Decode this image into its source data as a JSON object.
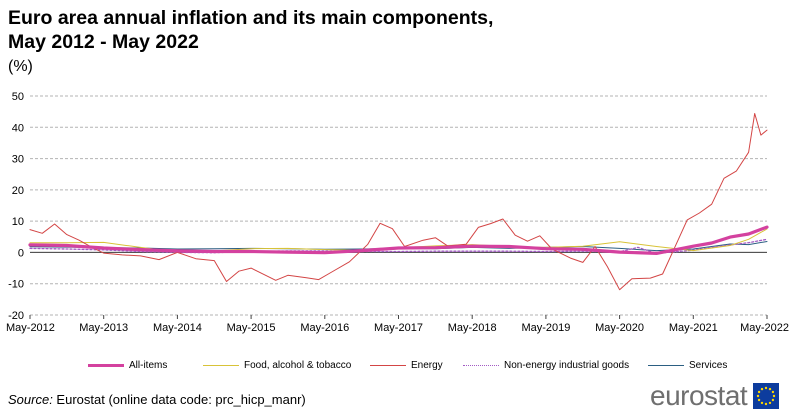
{
  "title_line1": "Euro area annual inflation and its main components,",
  "title_line2": "May 2012 - May 2022",
  "unit": "(%)",
  "source_label": "Source:",
  "source_text": " Eurostat (online data code: prc_hicp_manr)",
  "brand": "eurostat",
  "colors": {
    "grid": "#b3b3b3",
    "axis": "#444444",
    "all_items": "#d4419f",
    "food": "#d8c338",
    "energy": "#d34545",
    "non_energy": "#a35bc4",
    "services": "#2b5f82",
    "flag_blue": "#0d3c9e",
    "flag_star": "#ffd700"
  },
  "chart_data": {
    "type": "line",
    "title": "Euro area annual inflation and its main components, May 2012 - May 2022",
    "ylabel": "(%)",
    "ylim": [
      -20,
      50
    ],
    "yticks": [
      -20,
      -10,
      0,
      10,
      20,
      30,
      40,
      50
    ],
    "grid": true,
    "legend_position": "bottom",
    "x_tick_labels": [
      "May-2012",
      "May-2013",
      "May-2014",
      "May-2015",
      "May-2016",
      "May-2017",
      "May-2018",
      "May-2019",
      "May-2020",
      "May-2021",
      "May-2022"
    ],
    "series": [
      {
        "name": "All-items",
        "color_key": "all_items",
        "width": 3.2,
        "dash": "",
        "points": [
          [
            "May-2012",
            2.4
          ],
          [
            "Nov-2012",
            2.2
          ],
          [
            "May-2013",
            1.4
          ],
          [
            "Nov-2013",
            0.9
          ],
          [
            "May-2014",
            0.5
          ],
          [
            "Nov-2014",
            0.3
          ],
          [
            "May-2015",
            0.3
          ],
          [
            "Nov-2015",
            0.1
          ],
          [
            "May-2016",
            -0.1
          ],
          [
            "Nov-2016",
            0.6
          ],
          [
            "May-2017",
            1.4
          ],
          [
            "Nov-2017",
            1.5
          ],
          [
            "May-2018",
            2.0
          ],
          [
            "Nov-2018",
            1.9
          ],
          [
            "May-2019",
            1.2
          ],
          [
            "Nov-2019",
            1.0
          ],
          [
            "May-2020",
            0.1
          ],
          [
            "Nov-2020",
            -0.3
          ],
          [
            "May-2021",
            2.0
          ],
          [
            "Aug-2021",
            3.0
          ],
          [
            "Nov-2021",
            4.9
          ],
          [
            "Feb-2022",
            5.9
          ],
          [
            "May-2022",
            8.1
          ]
        ]
      },
      {
        "name": "Food, alcohol & tobacco",
        "color_key": "food",
        "width": 1,
        "dash": "",
        "points": [
          [
            "May-2012",
            3.1
          ],
          [
            "Nov-2012",
            3.1
          ],
          [
            "May-2013",
            3.2
          ],
          [
            "Nov-2013",
            1.6
          ],
          [
            "May-2014",
            0.1
          ],
          [
            "Nov-2014",
            0.5
          ],
          [
            "May-2015",
            1.2
          ],
          [
            "Nov-2015",
            1.3
          ],
          [
            "May-2016",
            0.9
          ],
          [
            "Nov-2016",
            0.7
          ],
          [
            "May-2017",
            1.5
          ],
          [
            "Nov-2017",
            2.1
          ],
          [
            "May-2018",
            2.5
          ],
          [
            "Nov-2018",
            1.9
          ],
          [
            "May-2019",
            1.6
          ],
          [
            "Nov-2019",
            2.0
          ],
          [
            "May-2020",
            3.4
          ],
          [
            "Nov-2020",
            1.9
          ],
          [
            "May-2021",
            0.6
          ],
          [
            "Nov-2021",
            2.2
          ],
          [
            "Feb-2022",
            4.2
          ],
          [
            "May-2022",
            7.5
          ]
        ]
      },
      {
        "name": "Energy",
        "color_key": "energy",
        "width": 1,
        "dash": "",
        "points": [
          [
            "May-2012",
            7.3
          ],
          [
            "Jul-2012",
            6.1
          ],
          [
            "Sep-2012",
            9.1
          ],
          [
            "Nov-2012",
            5.7
          ],
          [
            "Jan-2013",
            3.9
          ],
          [
            "Mar-2013",
            1.7
          ],
          [
            "May-2013",
            -0.2
          ],
          [
            "Aug-2013",
            -0.8
          ],
          [
            "Nov-2013",
            -1.1
          ],
          [
            "Feb-2014",
            -2.3
          ],
          [
            "May-2014",
            0.0
          ],
          [
            "Aug-2014",
            -2.0
          ],
          [
            "Nov-2014",
            -2.6
          ],
          [
            "Jan-2015",
            -9.3
          ],
          [
            "Mar-2015",
            -6.0
          ],
          [
            "May-2015",
            -5.0
          ],
          [
            "Sep-2015",
            -8.9
          ],
          [
            "Nov-2015",
            -7.3
          ],
          [
            "Feb-2016",
            -8.1
          ],
          [
            "Apr-2016",
            -8.7
          ],
          [
            "Jun-2016",
            -6.4
          ],
          [
            "Sep-2016",
            -3.0
          ],
          [
            "Dec-2016",
            2.6
          ],
          [
            "Feb-2017",
            9.3
          ],
          [
            "Apr-2017",
            7.6
          ],
          [
            "Jun-2017",
            1.9
          ],
          [
            "Sep-2017",
            3.9
          ],
          [
            "Nov-2017",
            4.7
          ],
          [
            "Jan-2018",
            2.1
          ],
          [
            "Apr-2018",
            2.6
          ],
          [
            "Jun-2018",
            8.0
          ],
          [
            "Aug-2018",
            9.2
          ],
          [
            "Oct-2018",
            10.7
          ],
          [
            "Dec-2018",
            5.5
          ],
          [
            "Feb-2019",
            3.6
          ],
          [
            "Apr-2019",
            5.3
          ],
          [
            "Jun-2019",
            1.1
          ],
          [
            "Sep-2019",
            -1.8
          ],
          [
            "Nov-2019",
            -3.2
          ],
          [
            "Jan-2020",
            1.9
          ],
          [
            "Mar-2020",
            -4.5
          ],
          [
            "May-2020",
            -11.9
          ],
          [
            "Jul-2020",
            -8.4
          ],
          [
            "Oct-2020",
            -8.2
          ],
          [
            "Dec-2020",
            -6.9
          ],
          [
            "Feb-2021",
            1.7
          ],
          [
            "Apr-2021",
            10.4
          ],
          [
            "Jun-2021",
            12.6
          ],
          [
            "Aug-2021",
            15.4
          ],
          [
            "Oct-2021",
            23.7
          ],
          [
            "Dec-2021",
            26.0
          ],
          [
            "Feb-2022",
            32.0
          ],
          [
            "Mar-2022",
            44.4
          ],
          [
            "Apr-2022",
            37.5
          ],
          [
            "May-2022",
            39.1
          ]
        ]
      },
      {
        "name": "Non-energy industrial goods",
        "color_key": "non_energy",
        "width": 1.3,
        "dash": "2,2",
        "points": [
          [
            "May-2012",
            1.3
          ],
          [
            "Nov-2012",
            1.1
          ],
          [
            "May-2013",
            0.8
          ],
          [
            "Nov-2013",
            0.3
          ],
          [
            "May-2014",
            0.0
          ],
          [
            "Nov-2014",
            -0.1
          ],
          [
            "May-2015",
            0.3
          ],
          [
            "Nov-2015",
            0.5
          ],
          [
            "May-2016",
            0.5
          ],
          [
            "Nov-2016",
            0.3
          ],
          [
            "May-2017",
            0.3
          ],
          [
            "Nov-2017",
            0.4
          ],
          [
            "May-2018",
            0.4
          ],
          [
            "Nov-2018",
            0.4
          ],
          [
            "May-2019",
            0.3
          ],
          [
            "Nov-2019",
            0.4
          ],
          [
            "May-2020",
            0.2
          ],
          [
            "Aug-2020",
            1.6
          ],
          [
            "Nov-2020",
            -0.3
          ],
          [
            "May-2021",
            0.7
          ],
          [
            "Nov-2021",
            2.4
          ],
          [
            "Feb-2022",
            3.1
          ],
          [
            "May-2022",
            4.2
          ]
        ]
      },
      {
        "name": "Services",
        "color_key": "services",
        "width": 1,
        "dash": "",
        "points": [
          [
            "May-2012",
            1.8
          ],
          [
            "Nov-2012",
            1.7
          ],
          [
            "May-2013",
            1.5
          ],
          [
            "Nov-2013",
            1.4
          ],
          [
            "May-2014",
            1.1
          ],
          [
            "Nov-2014",
            1.2
          ],
          [
            "May-2015",
            1.3
          ],
          [
            "Nov-2015",
            1.2
          ],
          [
            "May-2016",
            1.0
          ],
          [
            "Nov-2016",
            1.1
          ],
          [
            "May-2017",
            1.3
          ],
          [
            "Nov-2017",
            1.2
          ],
          [
            "May-2018",
            1.6
          ],
          [
            "Nov-2018",
            1.3
          ],
          [
            "May-2019",
            1.6
          ],
          [
            "Nov-2019",
            1.9
          ],
          [
            "May-2020",
            1.3
          ],
          [
            "Nov-2020",
            0.6
          ],
          [
            "May-2021",
            1.1
          ],
          [
            "Nov-2021",
            2.7
          ],
          [
            "Feb-2022",
            2.5
          ],
          [
            "May-2022",
            3.5
          ]
        ]
      }
    ]
  }
}
